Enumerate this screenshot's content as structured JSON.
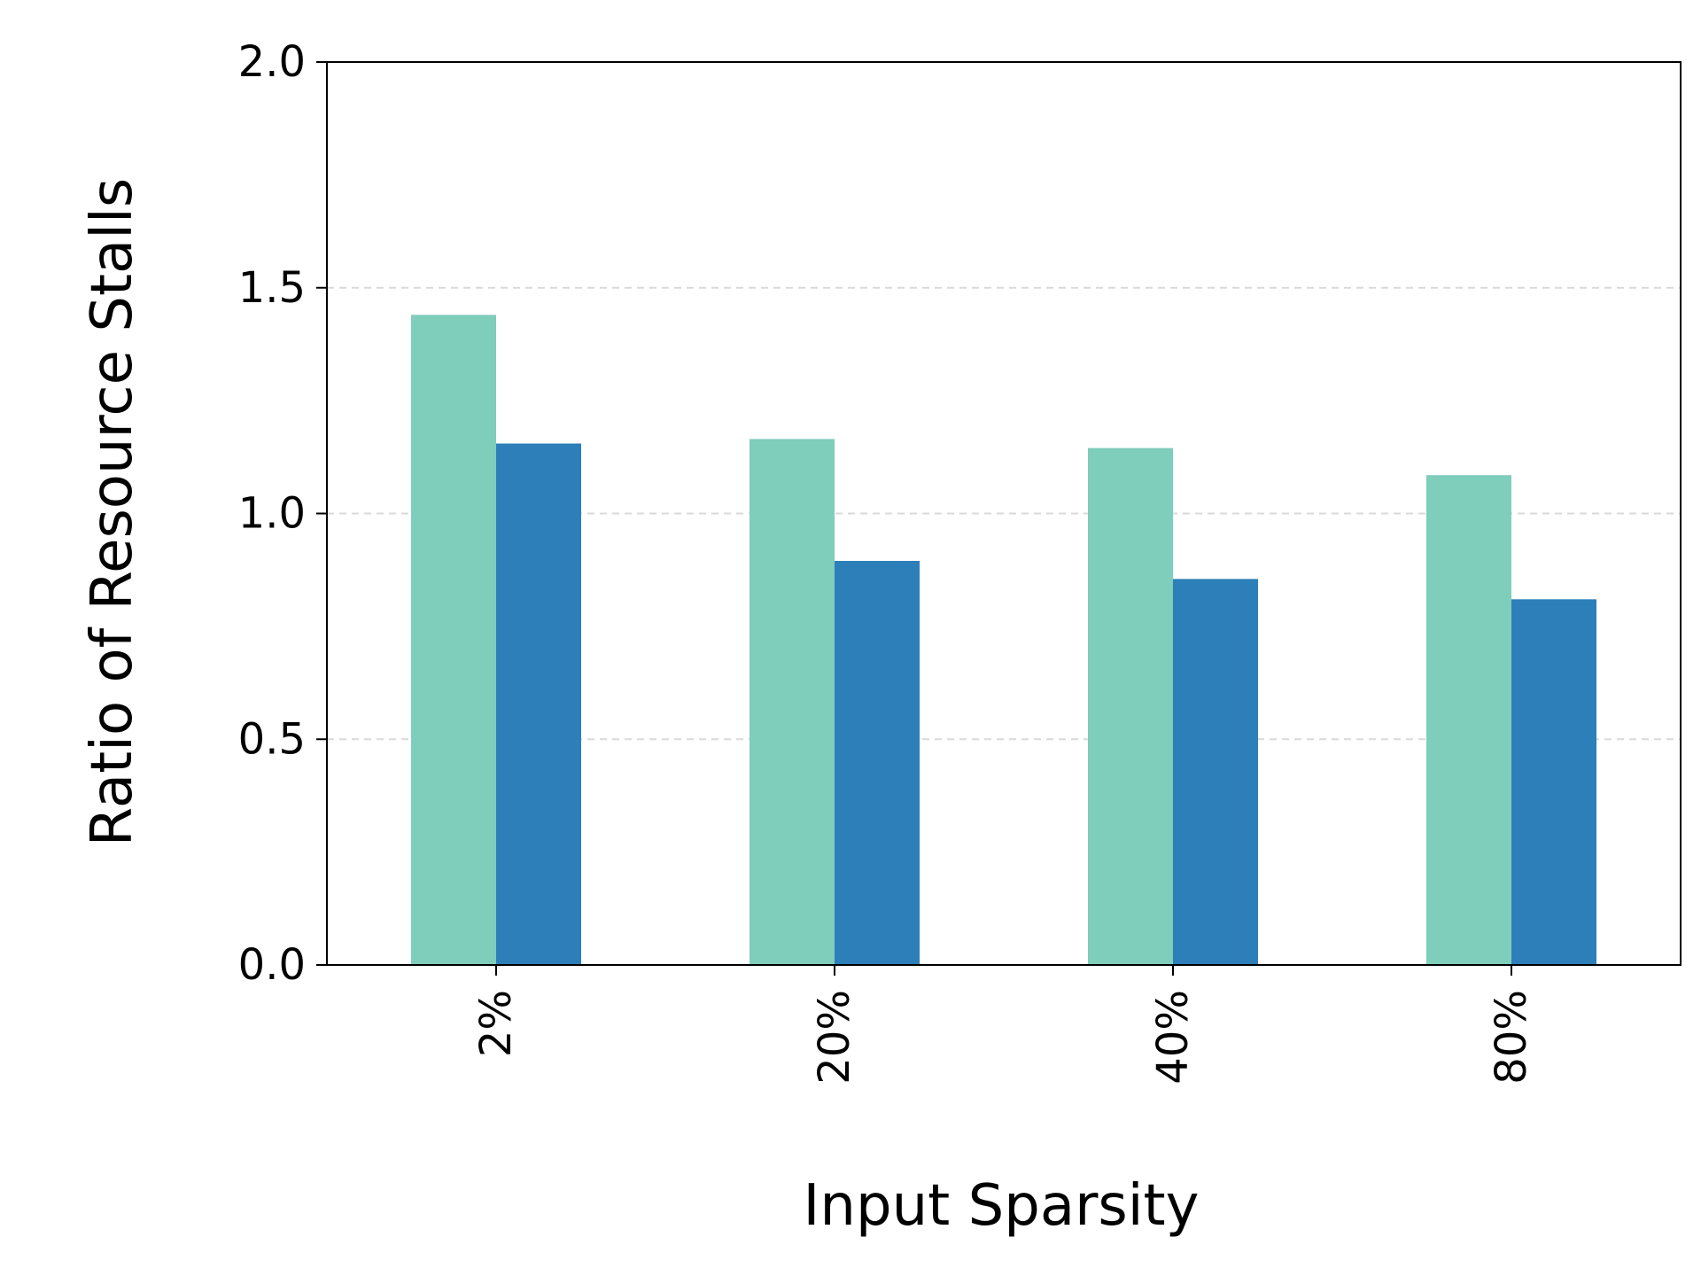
{
  "chart_data": {
    "type": "bar",
    "title": "",
    "xlabel": "Input Sparsity",
    "ylabel": "Ratio of Resource Stalls",
    "categories": [
      "2%",
      "20%",
      "40%",
      "80%"
    ],
    "series": [
      {
        "values": [
          1.44,
          1.165,
          1.145,
          1.085
        ]
      },
      {
        "values": [
          1.155,
          0.895,
          0.855,
          0.81
        ]
      }
    ],
    "ylim": [
      0,
      2.0
    ],
    "yticks": [
      "0.0",
      "0.5",
      "1.0",
      "1.5",
      "2.0"
    ],
    "ytick_values": [
      0,
      0.5,
      1.0,
      1.5,
      2.0
    ],
    "grid": "y, dashed",
    "legend": "none",
    "colors": {
      "series": [
        "#7fcdbb",
        "#2c7fb8"
      ],
      "grid": "#d9d9d9",
      "axis": "#000000"
    }
  }
}
